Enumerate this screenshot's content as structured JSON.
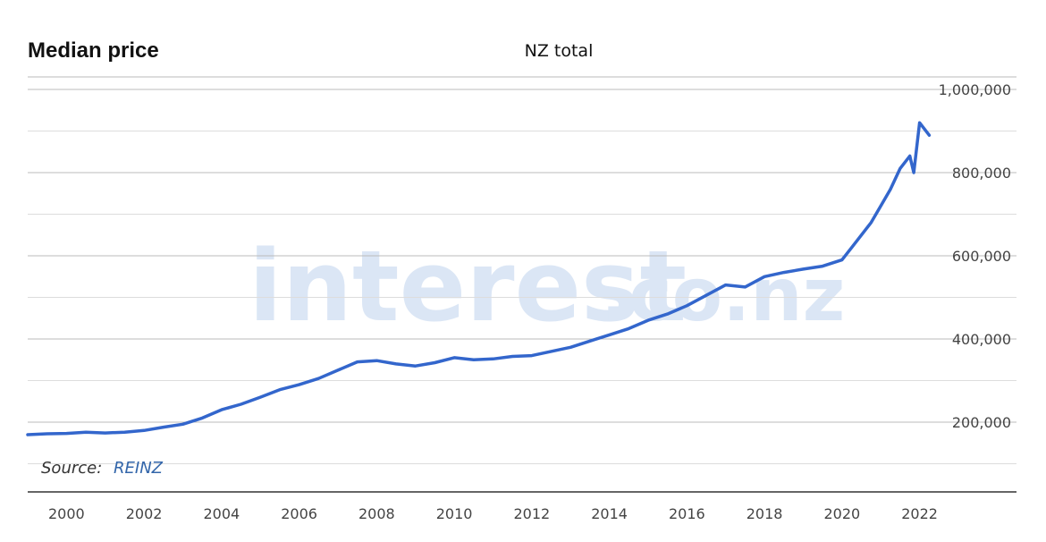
{
  "chart_title": "Median price",
  "chart_subtitle": "NZ total",
  "source_label": "Source:",
  "source_link": "REINZ",
  "watermark": {
    "main": "interest",
    "suffix": ".co.nz"
  },
  "series_color": "#3366cc",
  "chart_data": {
    "type": "line",
    "title": "Median price",
    "subtitle": "NZ total",
    "xlabel": "",
    "ylabel": "",
    "x_ticks": [
      "2000",
      "2002",
      "2004",
      "2006",
      "2008",
      "2010",
      "2012",
      "2014",
      "2016",
      "2018",
      "2020",
      "2022"
    ],
    "y_ticks": [
      "200,000",
      "400,000",
      "600,000",
      "800,000",
      "1,000,000"
    ],
    "xlim": [
      1999,
      2024.5
    ],
    "ylim": [
      100000,
      1000000
    ],
    "grid": true,
    "series": [
      {
        "name": "",
        "x": [
          1999.0,
          1999.5,
          2000.0,
          2000.5,
          2001.0,
          2001.5,
          2002.0,
          2002.5,
          2003.0,
          2003.5,
          2004.0,
          2004.5,
          2005.0,
          2005.5,
          2006.0,
          2006.5,
          2007.0,
          2007.5,
          2008.0,
          2008.5,
          2009.0,
          2009.5,
          2010.0,
          2010.5,
          2011.0,
          2011.5,
          2012.0,
          2012.5,
          2013.0,
          2013.5,
          2014.0,
          2014.5,
          2015.0,
          2015.5,
          2016.0,
          2016.5,
          2017.0,
          2017.5,
          2018.0,
          2018.5,
          2019.0,
          2019.5,
          2020.0,
          2020.25,
          2020.5,
          2020.75,
          2021.0,
          2021.25,
          2021.5,
          2021.75,
          2021.85,
          2022.0,
          2022.25
        ],
        "values": [
          170000,
          172000,
          173000,
          176000,
          174000,
          176000,
          180000,
          188000,
          195000,
          210000,
          230000,
          243000,
          260000,
          278000,
          290000,
          305000,
          325000,
          345000,
          348000,
          340000,
          335000,
          343000,
          355000,
          350000,
          352000,
          358000,
          360000,
          370000,
          380000,
          395000,
          410000,
          425000,
          445000,
          460000,
          480000,
          505000,
          530000,
          525000,
          550000,
          560000,
          568000,
          575000,
          590000,
          620000,
          650000,
          680000,
          720000,
          760000,
          810000,
          840000,
          800000,
          920000,
          890000
        ]
      }
    ]
  }
}
